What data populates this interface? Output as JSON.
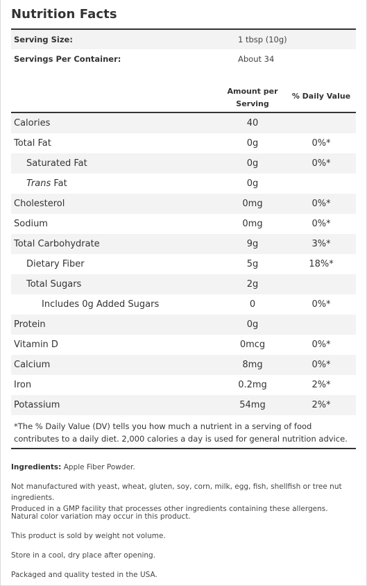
{
  "title": "Nutrition Facts",
  "serving": {
    "size_label": "Serving Size:",
    "size_value": "1 tbsp (10g)",
    "per_container_label": "Servings Per Container:",
    "per_container_value": "About 34"
  },
  "headers": {
    "amount_line1": "Amount per",
    "amount_line2": "Serving",
    "daily_value": "% Daily Value"
  },
  "rows": [
    {
      "name": "Calories",
      "amount": "40",
      "dv": ""
    },
    {
      "name": "Total Fat",
      "amount": "0g",
      "dv": "0%*"
    },
    {
      "name": "Saturated Fat",
      "amount": "0g",
      "dv": "0%*"
    },
    {
      "name_italic": "Trans",
      "name_rest": " Fat",
      "amount": "0g",
      "dv": ""
    },
    {
      "name": "Cholesterol",
      "amount": "0mg",
      "dv": "0%*"
    },
    {
      "name": "Sodium",
      "amount": "0mg",
      "dv": "0%*"
    },
    {
      "name": "Total Carbohydrate",
      "amount": "9g",
      "dv": "3%*"
    },
    {
      "name": "Dietary Fiber",
      "amount": "5g",
      "dv": "18%*"
    },
    {
      "name": "Total Sugars",
      "amount": "2g",
      "dv": ""
    },
    {
      "name": "Includes 0g Added Sugars",
      "amount": "0",
      "dv": "0%*"
    },
    {
      "name": "Protein",
      "amount": "0g",
      "dv": ""
    },
    {
      "name": "Vitamin D",
      "amount": "0mcg",
      "dv": "0%*"
    },
    {
      "name": "Calcium",
      "amount": "8mg",
      "dv": "0%*"
    },
    {
      "name": "Iron",
      "amount": "0.2mg",
      "dv": "2%*"
    },
    {
      "name": "Potassium",
      "amount": "54mg",
      "dv": "2%*"
    }
  ],
  "footnote": "*The % Daily Value (DV) tells you how much a nutrient in a serving of food contributes to a daily diet. 2,000 calories a day is used for general nutrition advice.",
  "info": {
    "ingredients_label": "Ingredients:",
    "ingredients_value": " Apple Fiber Powder.",
    "allergen_line1": "Not manufactured with yeast, wheat, gluten, soy, corn, milk, egg, fish, shellfish or tree nut ingredients.",
    "allergen_line2": "Produced in a GMP facility that processes other ingredients containing these allergens.",
    "color_note": "Natural color variation may occur in this product.",
    "weight_note": "This product is sold by weight not volume.",
    "storage_note": "Store in a cool, dry place after opening.",
    "quality_note": "Packaged and quality tested in the USA."
  }
}
